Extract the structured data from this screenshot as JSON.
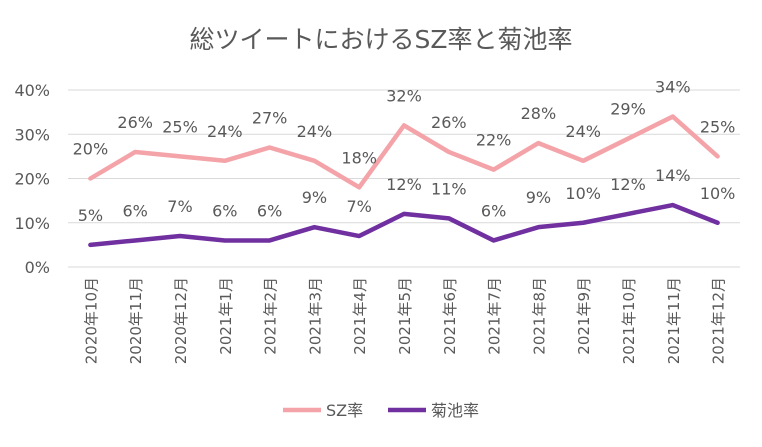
{
  "chart_data": {
    "type": "line",
    "title": "総ツイートにおけるSZ率と菊池率",
    "categories": [
      "2020年10月",
      "2020年11月",
      "2020年12月",
      "2021年1月",
      "2021年2月",
      "2021年3月",
      "2021年4月",
      "2021年5月",
      "2021年6月",
      "2021年7月",
      "2021年8月",
      "2021年9月",
      "2021年10月",
      "2021年11月",
      "2021年12月"
    ],
    "series": [
      {
        "name": "SZ率",
        "color": "#F4A3A8",
        "values": [
          20,
          26,
          25,
          24,
          27,
          24,
          18,
          32,
          26,
          22,
          28,
          24,
          29,
          34,
          25
        ]
      },
      {
        "name": "菊池率",
        "color": "#7030A0",
        "values": [
          5,
          6,
          7,
          6,
          6,
          9,
          7,
          12,
          11,
          6,
          9,
          10,
          12,
          14,
          10
        ]
      }
    ],
    "yticks": [
      "0%",
      "10%",
      "20%",
      "30%",
      "40%"
    ],
    "ylim": [
      0,
      40
    ],
    "grid": true,
    "legend": "bottom"
  }
}
